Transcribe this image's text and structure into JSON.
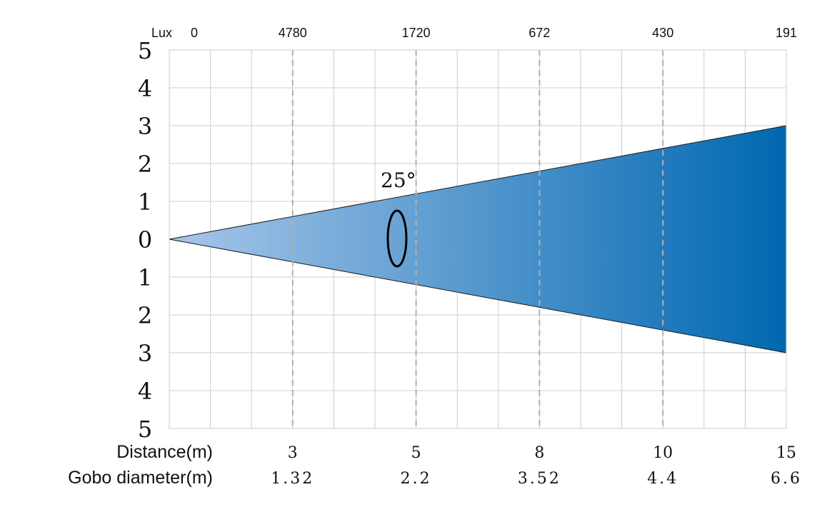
{
  "chart_data": {
    "type": "area",
    "lux_label": "Lux",
    "lux_origin": "0",
    "y_ticks": [
      "5",
      "4",
      "3",
      "2",
      "1",
      "0",
      "1",
      "2",
      "3",
      "4",
      "5"
    ],
    "ylim": [
      -5,
      5
    ],
    "xlim": [
      0,
      15
    ],
    "beam_angle": "25°",
    "row_labels": {
      "distance": "Distance(m)",
      "gobo": "Gobo diameter(m)"
    },
    "markers": [
      {
        "distance_m": 3,
        "distance": "3",
        "lux": "4780",
        "gobo": "1.32"
      },
      {
        "distance_m": 6,
        "distance": "5",
        "lux": "1720",
        "gobo": "2.2"
      },
      {
        "distance_m": 9,
        "distance": "8",
        "lux": "672",
        "gobo": "3.52"
      },
      {
        "distance_m": 12,
        "distance": "10",
        "lux": "430",
        "gobo": "4.4"
      },
      {
        "distance_m": 15,
        "distance": "15",
        "lux": "191",
        "gobo": "6.6"
      }
    ],
    "beam": {
      "apex": [
        0,
        0
      ],
      "end_x": 15,
      "end_half_height": 3
    },
    "colors": {
      "beam_start": "#a8c6ea",
      "beam_end": "#0068b0",
      "grid": "#cccccc",
      "dashed": "#b0b0b0"
    },
    "grid": true
  }
}
